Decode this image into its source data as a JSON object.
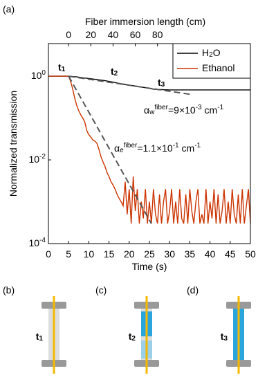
{
  "chart_data": {
    "type": "line",
    "panel_label": "(a)",
    "title": "Fiber immersion length (cm)",
    "xlabel": "Time (s)",
    "ylabel": "Normalized transmission",
    "xlim": [
      0,
      50
    ],
    "xticks": [
      0,
      5,
      10,
      15,
      20,
      25,
      30,
      35,
      40,
      45,
      50
    ],
    "x2lim": [
      -18.18,
      163.64
    ],
    "x2ticks": [
      0,
      20,
      40,
      60,
      80
    ],
    "ylim": [
      0.0001,
      6
    ],
    "log_y": true,
    "yticks": [
      {
        "value": 1,
        "label": "10^{0}"
      },
      {
        "value": 0.01,
        "label": "10^{-2}"
      },
      {
        "value": 0.0001,
        "label": "10^{-4}"
      }
    ],
    "legend": "upper right",
    "series": [
      {
        "name": "H_{2}O",
        "color": "#000000",
        "x": [
          0,
          1,
          2,
          3,
          4,
          5,
          6,
          7,
          8,
          9,
          10,
          12,
          14,
          16,
          18,
          20,
          22,
          24,
          26,
          27,
          30,
          35,
          40,
          45,
          50
        ],
        "values": [
          1,
          1,
          1,
          1,
          1,
          1,
          0.98,
          0.96,
          0.93,
          0.9,
          0.88,
          0.83,
          0.78,
          0.72,
          0.66,
          0.61,
          0.57,
          0.53,
          0.49,
          0.48,
          0.47,
          0.47,
          0.47,
          0.47,
          0.47
        ]
      },
      {
        "name": "Ethanol",
        "color": "#cc3300",
        "x": [
          0,
          0.5,
          1,
          1.5,
          2,
          2.5,
          3,
          3.5,
          4,
          4.5,
          5,
          5.5,
          6,
          6.5,
          7,
          7.5,
          8,
          8.5,
          9,
          9.5,
          10,
          10.5,
          11,
          11.5,
          12,
          12.5,
          13,
          13.5,
          14,
          14.5,
          15,
          15.5,
          16,
          16.5,
          17,
          17.5,
          18,
          18.5,
          19,
          19.5,
          20,
          20.5,
          21,
          21.5,
          22,
          22.5,
          23,
          23.5,
          24,
          24.5,
          25,
          25.5,
          26,
          26.5,
          27,
          27.5,
          28,
          28.5,
          29,
          29.5,
          30,
          30.5,
          31,
          31.5,
          32,
          32.5,
          33,
          33.5,
          34,
          34.5,
          35,
          35.5,
          36,
          36.5,
          37,
          37.5,
          38,
          38.5,
          39,
          39.5,
          40,
          40.5,
          41,
          41.5,
          42,
          42.5,
          43,
          43.5,
          44,
          44.5,
          45,
          45.5,
          46,
          46.5,
          47,
          47.5,
          48,
          48.5,
          49,
          49.5,
          50
        ],
        "values": [
          1,
          1,
          1,
          1,
          1,
          1,
          1,
          1,
          1,
          1,
          1,
          0.75,
          0.5,
          0.3,
          0.2,
          0.15,
          0.12,
          0.1,
          0.08,
          0.05,
          0.04,
          0.035,
          0.03,
          0.028,
          0.025,
          0.018,
          0.012,
          0.009,
          0.007,
          0.005,
          0.004,
          0.003,
          0.0025,
          0.002,
          0.0015,
          0.0012,
          0.001,
          0.0008,
          0.003,
          0.0005,
          0.002,
          0.0003,
          0.004,
          0.0006,
          0.002,
          0.0003,
          0.001,
          0.0004,
          0.002,
          0.0003,
          0.001,
          0.0003,
          0.002,
          0.0005,
          0.0003,
          0.0015,
          0.0003,
          0.001,
          0.002,
          0.0003,
          0.0006,
          0.002,
          0.0003,
          0.001,
          0.0003,
          0.002,
          0.0004,
          0.0003,
          0.0015,
          0.0003,
          0.002,
          0.0006,
          0.0003,
          0.001,
          0.002,
          0.0003,
          0.0005,
          0.0003,
          0.002,
          0.0003,
          0.001,
          0.0004,
          0.002,
          0.0003,
          0.0015,
          0.0003,
          0.0006,
          0.002,
          0.0003,
          0.001,
          0.0003,
          0.002,
          0.0005,
          0.0003,
          0.0015,
          0.0003,
          0.002,
          0.0003,
          0.0008,
          0.002,
          0.0003
        ]
      }
    ],
    "fits": [
      {
        "color": "#555555",
        "x": [
          5,
          35
        ],
        "values": [
          1,
          0.37
        ]
      },
      {
        "color": "#555555",
        "x": [
          5,
          25.5
        ],
        "values": [
          1,
          0.0003
        ]
      }
    ],
    "annotations": [
      {
        "text": "t_{1}",
        "color": "#000000"
      },
      {
        "text": "t_{2}",
        "color": "#000000"
      },
      {
        "text": "t_{3}",
        "color": "#000000"
      },
      {
        "text": "α_{w}^{fiber}=9×10^{-3} cm^{-1}",
        "color": "#000000"
      },
      {
        "text": "α_{e}^{fiber}=1.1×10^{-1} cm^{-1}",
        "color": "#cc3300"
      }
    ]
  },
  "panels": [
    {
      "label": "(b)",
      "time": "t_{1}"
    },
    {
      "label": "(c)",
      "time": "t_{2}"
    },
    {
      "label": "(d)",
      "time": "t_{3}"
    }
  ]
}
